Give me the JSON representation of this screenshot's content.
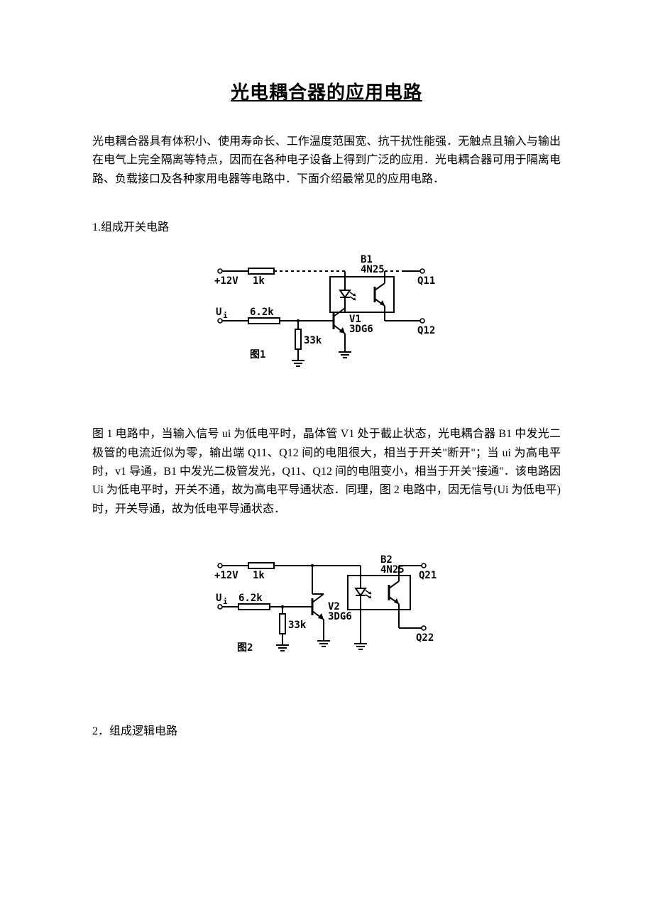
{
  "title": "光电耦合器的应用电路",
  "intro": "光电耦合器具有体积小、使用寿命长、工作温度范围宽、抗干扰性能强．无触点且输入与输出在电气上完全隔离等特点，因而在各种电子设备上得到广泛的应用．光电耦合器可用于隔离电路、负载接口及各种家用电器等电路中．下面介绍最常见的应用电路．",
  "section1": "1.组成开关电路",
  "para2": "图 1 电路中，当输入信号 ui 为低电平时，晶体管 V1 处于截止状态，光电耦合器 B1 中发光二极管的电流近似为零，输出端 Q11、Q12 间的电阻很大，相当于开关\"断开\"；当 ui 为高电平时，v1 导通，B1 中发光二极管发光，Q11、Q12 间的电阻变小，相当于开关\"接通\"．该电路因 Ui 为低电平时，开关不通，故为高电平导通状态．同理，图 2 电路中，因无信号(Ui 为低电平)时，开关导通，故为低电平导通状态．",
  "section2": "2．组成逻辑电路",
  "fig1": {
    "label": "图1",
    "v12": "+12V",
    "r1": "1k",
    "r2": "6.2k",
    "r3": "33k",
    "ui": "U<tspan baseline-shift='-3' font-size='11'>i</tspan>",
    "opt": "B1",
    "opt2": "4N25",
    "tr": "V1",
    "tr2": "3DG6",
    "out1": "Q11",
    "out2": "Q12",
    "stroke": "#000000",
    "stroke_w": 2,
    "font": "13px monospace"
  },
  "fig2": {
    "label": "图2",
    "v12": "+12V",
    "r1": "1k",
    "r2": "6.2k",
    "r3": "33k",
    "ui": "U<tspan baseline-shift='-3' font-size='11'>i</tspan>",
    "opt": "B2",
    "opt2": "4N25",
    "tr": "V2",
    "tr2": "3DG6",
    "out1": "Q21",
    "out2": "Q22",
    "stroke": "#000000",
    "stroke_w": 2,
    "font": "13px monospace"
  }
}
